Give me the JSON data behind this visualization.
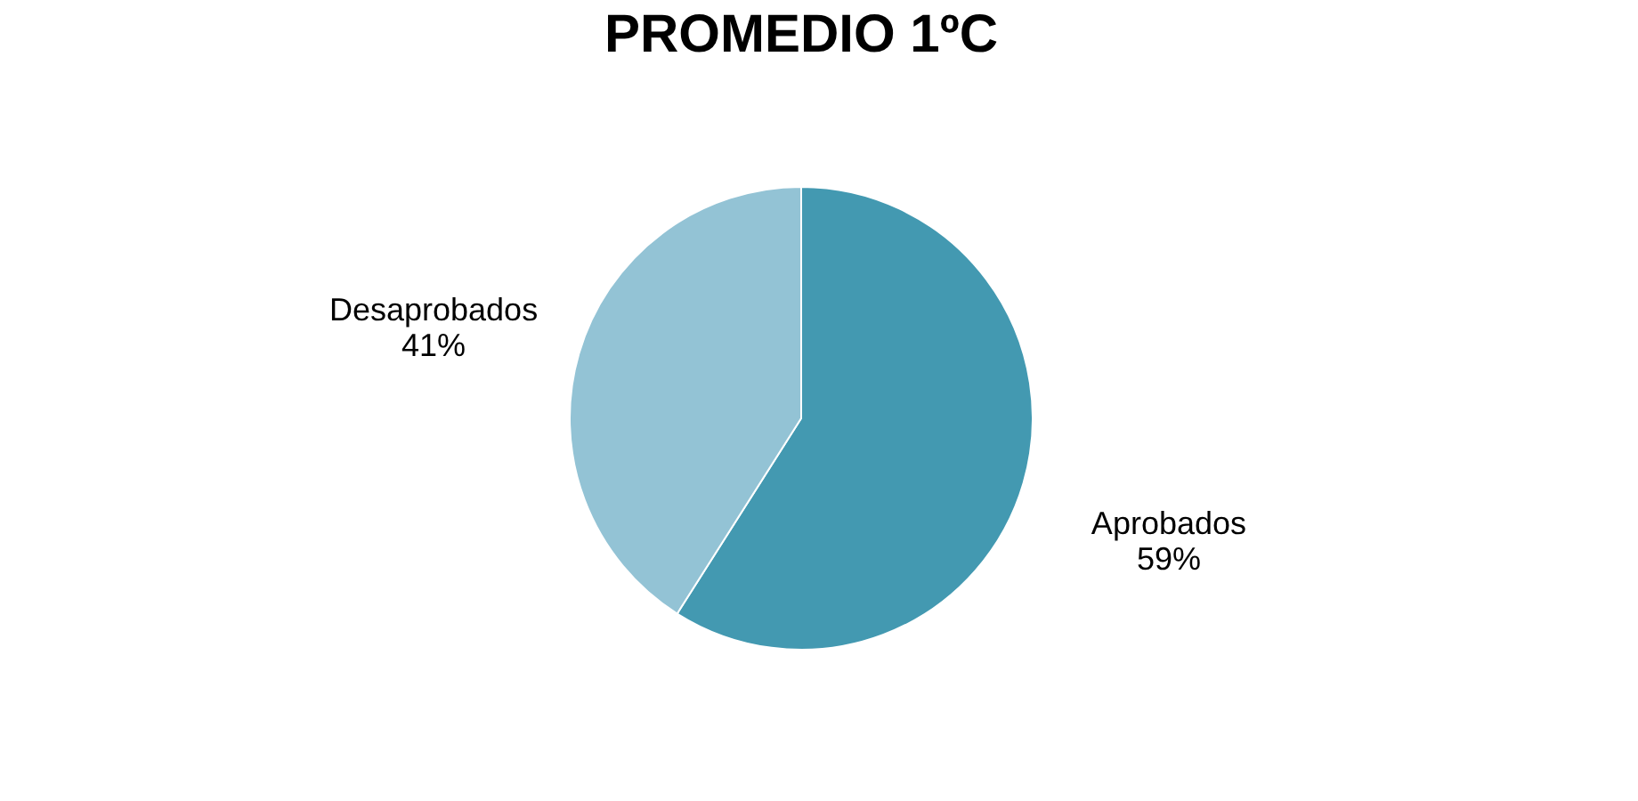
{
  "chart_data": {
    "type": "pie",
    "title": "PROMEDIO 1ºC",
    "categories": [
      "Aprobados",
      "Desaprobados"
    ],
    "values": [
      59,
      41
    ],
    "colors": [
      "#4399b1",
      "#93c3d5"
    ],
    "value_labels": [
      "59%",
      "41%"
    ],
    "legend": false
  }
}
